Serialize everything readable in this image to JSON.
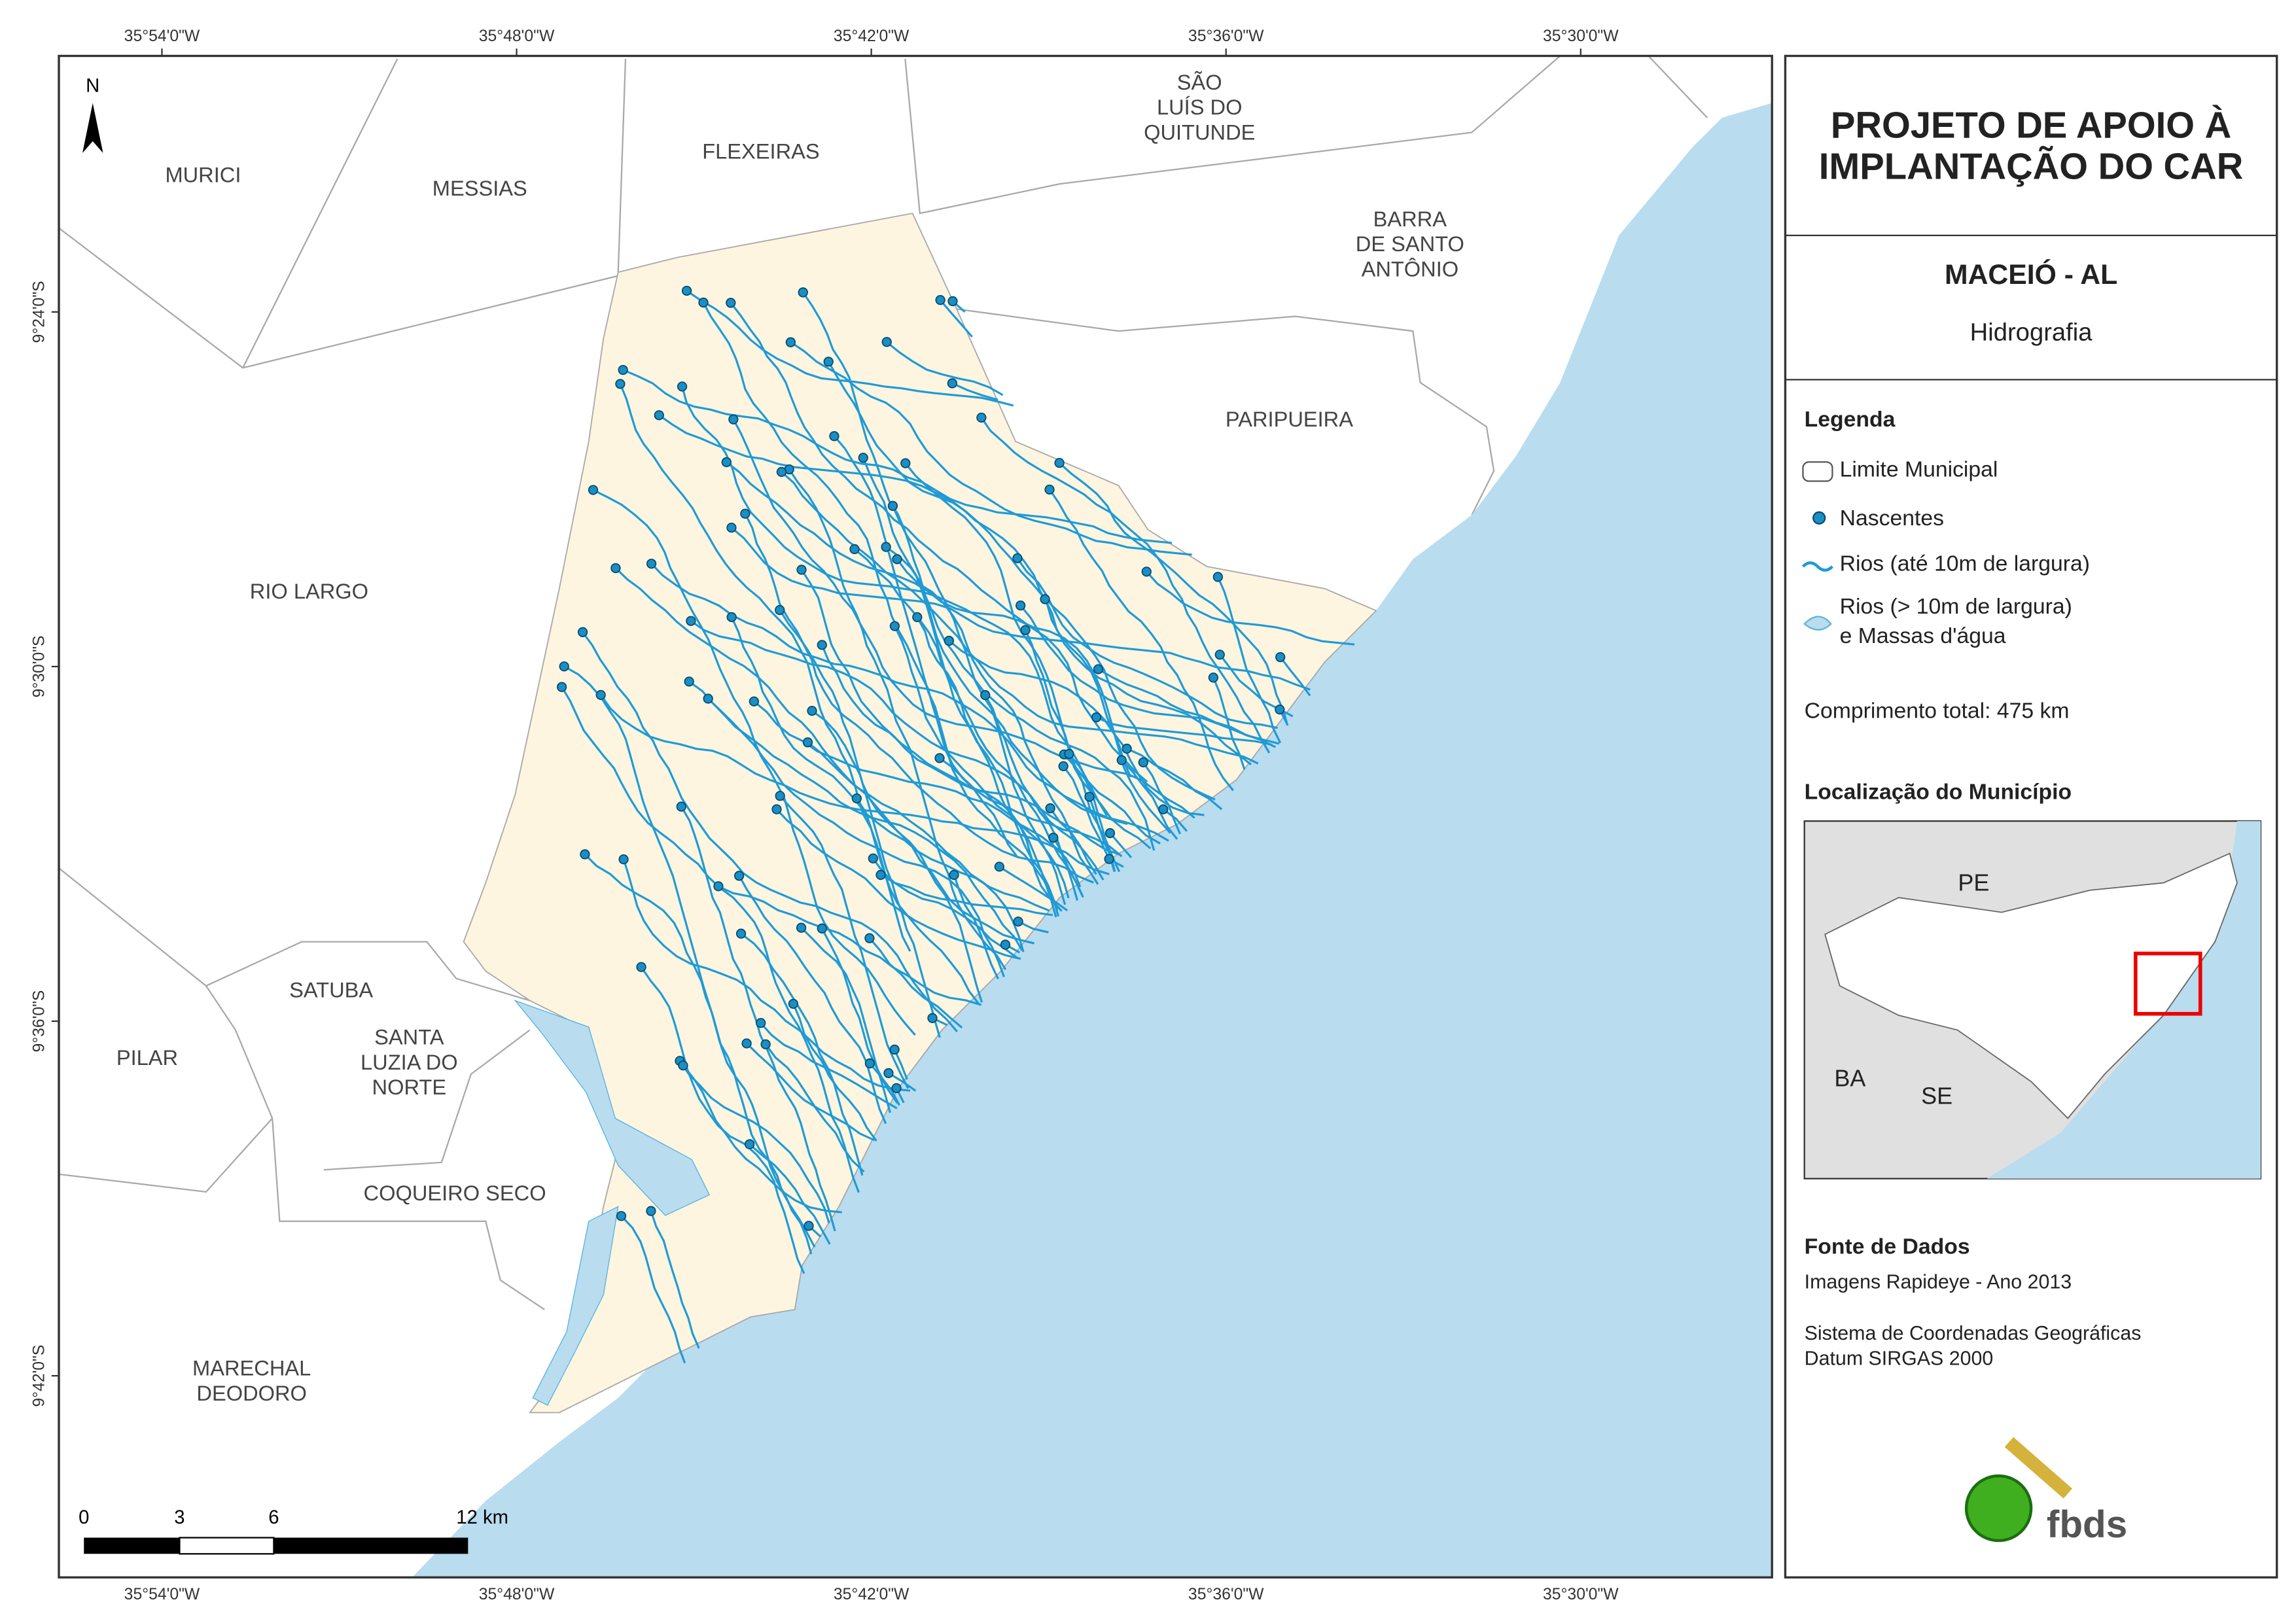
{
  "map": {
    "coordinates": {
      "top": [
        "35°54'0\"W",
        "35°48'0\"W",
        "35°42'0\"W",
        "35°36'0\"W",
        "35°30'0\"W"
      ],
      "bottom": [
        "35°54'0\"W",
        "35°48'0\"W",
        "35°42'0\"W",
        "35°36'0\"W",
        "35°30'0\"W"
      ],
      "left": [
        "9°24'0\"S",
        "9°30'0\"S",
        "9°36'0\"S",
        "9°42'0\"S"
      ]
    },
    "north_arrow": "N",
    "municipalities": [
      {
        "lines": [
          "MURICI"
        ]
      },
      {
        "lines": [
          "MESSIAS"
        ]
      },
      {
        "lines": [
          "FLEXEIRAS"
        ]
      },
      {
        "lines": [
          "SÃO",
          "LUÍS DO",
          "QUITUNDE"
        ]
      },
      {
        "lines": [
          "BARRA",
          "DE SANTO",
          "ANTÔNIO"
        ]
      },
      {
        "lines": [
          "PARIPUEIRA"
        ]
      },
      {
        "lines": [
          "RIO LARGO"
        ]
      },
      {
        "lines": [
          "SATUBA"
        ]
      },
      {
        "lines": [
          "SANTA",
          "LUZIA DO",
          "NORTE"
        ]
      },
      {
        "lines": [
          "PILAR"
        ]
      },
      {
        "lines": [
          "COQUEIRO SECO"
        ]
      },
      {
        "lines": [
          "MARECHAL",
          "DEODORO"
        ]
      }
    ],
    "scale_bar": [
      "0",
      "3",
      "6",
      "12 km"
    ]
  },
  "panel": {
    "title": [
      "PROJETO DE APOIO À",
      "IMPLANTAÇÃO DO CAR"
    ],
    "subtitle": "MACEIÓ - AL",
    "theme": "Hidrografia",
    "legend": {
      "heading": "Legenda",
      "items": [
        {
          "lines": [
            "Limite Municipal"
          ]
        },
        {
          "lines": [
            "Nascentes"
          ]
        },
        {
          "lines": [
            "Rios (até 10m de largura)"
          ]
        },
        {
          "lines": [
            "Rios (> 10m de largura)",
            "e Massas d'água"
          ]
        }
      ]
    },
    "total_length": "Comprimento total: 475 km",
    "location": {
      "heading": "Localização do Município",
      "labels": [
        "PE",
        "BA",
        "SE"
      ]
    },
    "sources": {
      "heading": "Fonte de Dados",
      "lines": [
        "Imagens Rapideye - Ano 2013",
        "Sistema de Coordenadas Geográficas",
        "Datum SIRGAS 2000"
      ]
    },
    "logo": "fbds"
  }
}
